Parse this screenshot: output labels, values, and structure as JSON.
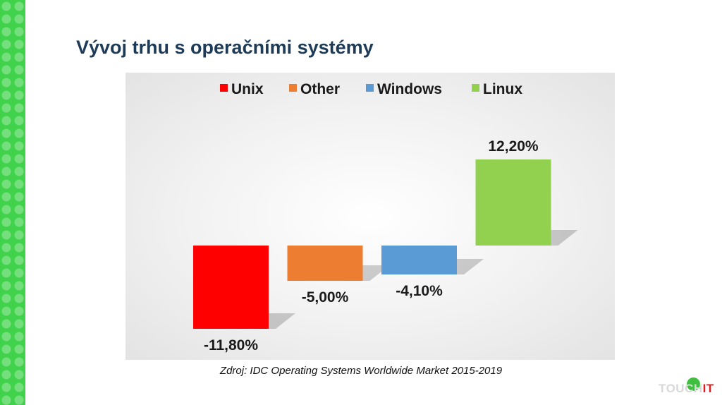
{
  "title": "Vývoj trhu s operačními systémy",
  "source": "Zdroj: IDC Operating Systems Worldwide Market 2015-2019",
  "logo": {
    "text_main": "TOUCH",
    "text_accent": "IT"
  },
  "chart_data": {
    "type": "bar",
    "title": "",
    "xlabel": "",
    "ylabel": "",
    "categories": [
      "Unix",
      "Other",
      "Windows",
      "Linux"
    ],
    "values": [
      -11.8,
      -5.0,
      -4.1,
      12.2
    ],
    "data_labels": [
      "-11,80%",
      "-5,00%",
      "-4,10%",
      "12,20%"
    ],
    "colors": [
      "#ff0000",
      "#ed7d31",
      "#5b9bd5",
      "#92d050"
    ],
    "legend": {
      "position": "top",
      "entries": [
        "Unix",
        "Other",
        "Windows",
        "Linux"
      ]
    },
    "ylim": [
      -13,
      14
    ],
    "grid": false
  }
}
